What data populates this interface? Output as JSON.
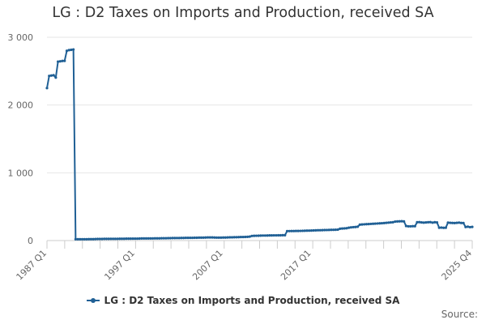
{
  "chart_data": {
    "type": "line",
    "title": "LG : D2 Taxes on Imports and Production, received SA",
    "ylim": [
      0,
      3000
    ],
    "y_ticks": [
      0,
      1000,
      2000,
      3000
    ],
    "y_tick_labels": [
      "0",
      "1 000",
      "2 000",
      "3 000"
    ],
    "x_tick_labels": [
      "1987 Q1",
      "1997 Q1",
      "2007 Q1",
      "2017 Q1",
      "2025 Q4"
    ],
    "grid": "horizontal",
    "legend_position": "bottom",
    "x_start": "1987 Q1",
    "x_end": "2025 Q4",
    "series": [
      {
        "name": "LG : D2 Taxes on Imports and Production, received SA",
        "color": "#206095",
        "values": [
          2250,
          2430,
          2435,
          2440,
          2405,
          2640,
          2645,
          2650,
          2652,
          2800,
          2810,
          2815,
          2820,
          20,
          20,
          20,
          20,
          20,
          20,
          21,
          21,
          21,
          22,
          24,
          24,
          24,
          25,
          25,
          25,
          26,
          26,
          26,
          26,
          27,
          27,
          27,
          28,
          28,
          28,
          29,
          29,
          29,
          30,
          31,
          31,
          31,
          32,
          32,
          32,
          33,
          33,
          33,
          34,
          35,
          35,
          36,
          36,
          37,
          37,
          38,
          38,
          39,
          39,
          40,
          40,
          41,
          41,
          42,
          42,
          43,
          43,
          44,
          45,
          46,
          46,
          46,
          45,
          44,
          44,
          44,
          45,
          45,
          46,
          48,
          48,
          49,
          50,
          51,
          52,
          53,
          54,
          55,
          58,
          68,
          70,
          71,
          72,
          73,
          74,
          74,
          75,
          76,
          76,
          77,
          77,
          78,
          78,
          79,
          79,
          140,
          140,
          141,
          141,
          142,
          142,
          143,
          144,
          145,
          146,
          147,
          148,
          150,
          151,
          152,
          153,
          154,
          155,
          156,
          157,
          158,
          159,
          160,
          162,
          175,
          178,
          180,
          182,
          190,
          195,
          198,
          200,
          205,
          235,
          238,
          240,
          242,
          244,
          246,
          248,
          250,
          252,
          254,
          256,
          258,
          262,
          265,
          268,
          270,
          280,
          282,
          284,
          285,
          283,
          215,
          210,
          210,
          212,
          212,
          270,
          272,
          268,
          265,
          268,
          270,
          272,
          265,
          270,
          268,
          190,
          192,
          188,
          190,
          265,
          262,
          260,
          258,
          262,
          265,
          260,
          258,
          200,
          205,
          198,
          202
        ]
      }
    ]
  },
  "credits": "Source:"
}
